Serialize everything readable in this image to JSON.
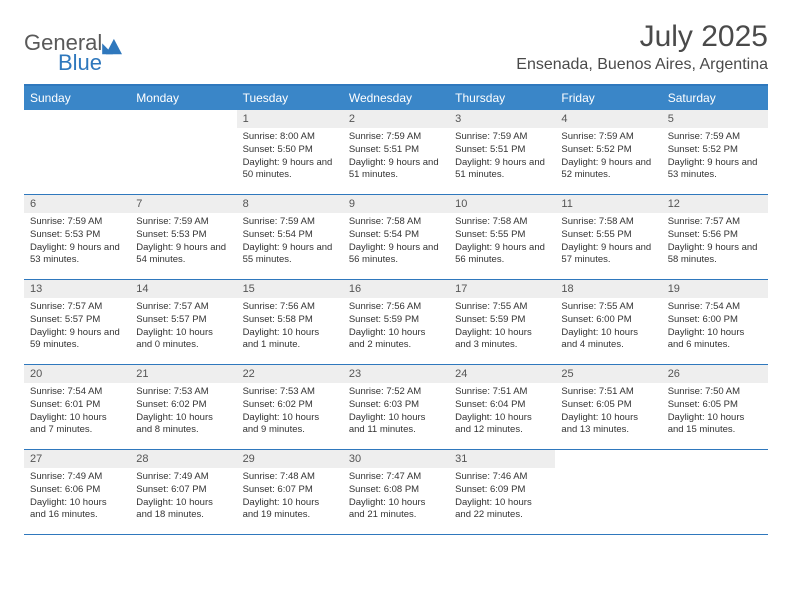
{
  "brand": {
    "word1": "General",
    "word2": "Blue"
  },
  "colors": {
    "accent": "#3a86c8",
    "accent_dark": "#2f78bd",
    "text": "#3a3a3a",
    "daynum_bg": "#eeeeee",
    "bg": "#ffffff"
  },
  "title": "July 2025",
  "location": "Ensenada, Buenos Aires, Argentina",
  "weekdays": [
    "Sunday",
    "Monday",
    "Tuesday",
    "Wednesday",
    "Thursday",
    "Friday",
    "Saturday"
  ],
  "weeks": [
    [
      {
        "n": "",
        "sr": "",
        "ss": "",
        "dl": ""
      },
      {
        "n": "",
        "sr": "",
        "ss": "",
        "dl": ""
      },
      {
        "n": "1",
        "sr": "Sunrise: 8:00 AM",
        "ss": "Sunset: 5:50 PM",
        "dl": "Daylight: 9 hours and 50 minutes."
      },
      {
        "n": "2",
        "sr": "Sunrise: 7:59 AM",
        "ss": "Sunset: 5:51 PM",
        "dl": "Daylight: 9 hours and 51 minutes."
      },
      {
        "n": "3",
        "sr": "Sunrise: 7:59 AM",
        "ss": "Sunset: 5:51 PM",
        "dl": "Daylight: 9 hours and 51 minutes."
      },
      {
        "n": "4",
        "sr": "Sunrise: 7:59 AM",
        "ss": "Sunset: 5:52 PM",
        "dl": "Daylight: 9 hours and 52 minutes."
      },
      {
        "n": "5",
        "sr": "Sunrise: 7:59 AM",
        "ss": "Sunset: 5:52 PM",
        "dl": "Daylight: 9 hours and 53 minutes."
      }
    ],
    [
      {
        "n": "6",
        "sr": "Sunrise: 7:59 AM",
        "ss": "Sunset: 5:53 PM",
        "dl": "Daylight: 9 hours and 53 minutes."
      },
      {
        "n": "7",
        "sr": "Sunrise: 7:59 AM",
        "ss": "Sunset: 5:53 PM",
        "dl": "Daylight: 9 hours and 54 minutes."
      },
      {
        "n": "8",
        "sr": "Sunrise: 7:59 AM",
        "ss": "Sunset: 5:54 PM",
        "dl": "Daylight: 9 hours and 55 minutes."
      },
      {
        "n": "9",
        "sr": "Sunrise: 7:58 AM",
        "ss": "Sunset: 5:54 PM",
        "dl": "Daylight: 9 hours and 56 minutes."
      },
      {
        "n": "10",
        "sr": "Sunrise: 7:58 AM",
        "ss": "Sunset: 5:55 PM",
        "dl": "Daylight: 9 hours and 56 minutes."
      },
      {
        "n": "11",
        "sr": "Sunrise: 7:58 AM",
        "ss": "Sunset: 5:55 PM",
        "dl": "Daylight: 9 hours and 57 minutes."
      },
      {
        "n": "12",
        "sr": "Sunrise: 7:57 AM",
        "ss": "Sunset: 5:56 PM",
        "dl": "Daylight: 9 hours and 58 minutes."
      }
    ],
    [
      {
        "n": "13",
        "sr": "Sunrise: 7:57 AM",
        "ss": "Sunset: 5:57 PM",
        "dl": "Daylight: 9 hours and 59 minutes."
      },
      {
        "n": "14",
        "sr": "Sunrise: 7:57 AM",
        "ss": "Sunset: 5:57 PM",
        "dl": "Daylight: 10 hours and 0 minutes."
      },
      {
        "n": "15",
        "sr": "Sunrise: 7:56 AM",
        "ss": "Sunset: 5:58 PM",
        "dl": "Daylight: 10 hours and 1 minute."
      },
      {
        "n": "16",
        "sr": "Sunrise: 7:56 AM",
        "ss": "Sunset: 5:59 PM",
        "dl": "Daylight: 10 hours and 2 minutes."
      },
      {
        "n": "17",
        "sr": "Sunrise: 7:55 AM",
        "ss": "Sunset: 5:59 PM",
        "dl": "Daylight: 10 hours and 3 minutes."
      },
      {
        "n": "18",
        "sr": "Sunrise: 7:55 AM",
        "ss": "Sunset: 6:00 PM",
        "dl": "Daylight: 10 hours and 4 minutes."
      },
      {
        "n": "19",
        "sr": "Sunrise: 7:54 AM",
        "ss": "Sunset: 6:00 PM",
        "dl": "Daylight: 10 hours and 6 minutes."
      }
    ],
    [
      {
        "n": "20",
        "sr": "Sunrise: 7:54 AM",
        "ss": "Sunset: 6:01 PM",
        "dl": "Daylight: 10 hours and 7 minutes."
      },
      {
        "n": "21",
        "sr": "Sunrise: 7:53 AM",
        "ss": "Sunset: 6:02 PM",
        "dl": "Daylight: 10 hours and 8 minutes."
      },
      {
        "n": "22",
        "sr": "Sunrise: 7:53 AM",
        "ss": "Sunset: 6:02 PM",
        "dl": "Daylight: 10 hours and 9 minutes."
      },
      {
        "n": "23",
        "sr": "Sunrise: 7:52 AM",
        "ss": "Sunset: 6:03 PM",
        "dl": "Daylight: 10 hours and 11 minutes."
      },
      {
        "n": "24",
        "sr": "Sunrise: 7:51 AM",
        "ss": "Sunset: 6:04 PM",
        "dl": "Daylight: 10 hours and 12 minutes."
      },
      {
        "n": "25",
        "sr": "Sunrise: 7:51 AM",
        "ss": "Sunset: 6:05 PM",
        "dl": "Daylight: 10 hours and 13 minutes."
      },
      {
        "n": "26",
        "sr": "Sunrise: 7:50 AM",
        "ss": "Sunset: 6:05 PM",
        "dl": "Daylight: 10 hours and 15 minutes."
      }
    ],
    [
      {
        "n": "27",
        "sr": "Sunrise: 7:49 AM",
        "ss": "Sunset: 6:06 PM",
        "dl": "Daylight: 10 hours and 16 minutes."
      },
      {
        "n": "28",
        "sr": "Sunrise: 7:49 AM",
        "ss": "Sunset: 6:07 PM",
        "dl": "Daylight: 10 hours and 18 minutes."
      },
      {
        "n": "29",
        "sr": "Sunrise: 7:48 AM",
        "ss": "Sunset: 6:07 PM",
        "dl": "Daylight: 10 hours and 19 minutes."
      },
      {
        "n": "30",
        "sr": "Sunrise: 7:47 AM",
        "ss": "Sunset: 6:08 PM",
        "dl": "Daylight: 10 hours and 21 minutes."
      },
      {
        "n": "31",
        "sr": "Sunrise: 7:46 AM",
        "ss": "Sunset: 6:09 PM",
        "dl": "Daylight: 10 hours and 22 minutes."
      },
      {
        "n": "",
        "sr": "",
        "ss": "",
        "dl": ""
      },
      {
        "n": "",
        "sr": "",
        "ss": "",
        "dl": ""
      }
    ]
  ]
}
